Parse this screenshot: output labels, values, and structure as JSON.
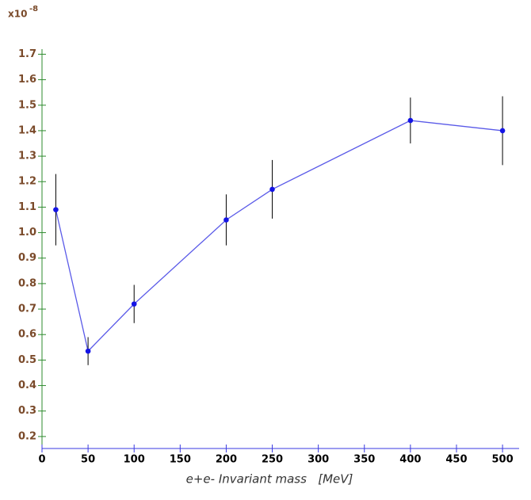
{
  "chart_data": {
    "type": "errorbar-line",
    "multiplier_base": "x10",
    "multiplier_exponent": "-8",
    "xlabel": "e+e- Invariant mass   [MeV]",
    "x": [
      15,
      50,
      100,
      200,
      250,
      400,
      500
    ],
    "values": [
      1.09,
      0.535,
      0.72,
      1.05,
      1.17,
      1.44,
      1.4
    ],
    "errors": [
      0.14,
      0.055,
      0.075,
      0.1,
      0.115,
      0.09,
      0.135
    ],
    "line_color": "#5a5ae8",
    "marker_color": "#1414e6",
    "error_color": "#000000",
    "y_axis_color": "#2e8b2e",
    "x_axis_color": "#3a3ae0",
    "xlim": [
      0,
      518
    ],
    "ylim": [
      0.153,
      1.72
    ],
    "xticks": [
      0,
      50,
      100,
      150,
      200,
      250,
      300,
      350,
      400,
      450,
      500
    ],
    "yticks": [
      0.2,
      0.3,
      0.4,
      0.5,
      0.6,
      0.7,
      0.8,
      0.9,
      {
        "value": 1,
        "label": "1.0"
      },
      1.1,
      1.2,
      1.3,
      1.4,
      1.5,
      1.6,
      1.7
    ]
  }
}
